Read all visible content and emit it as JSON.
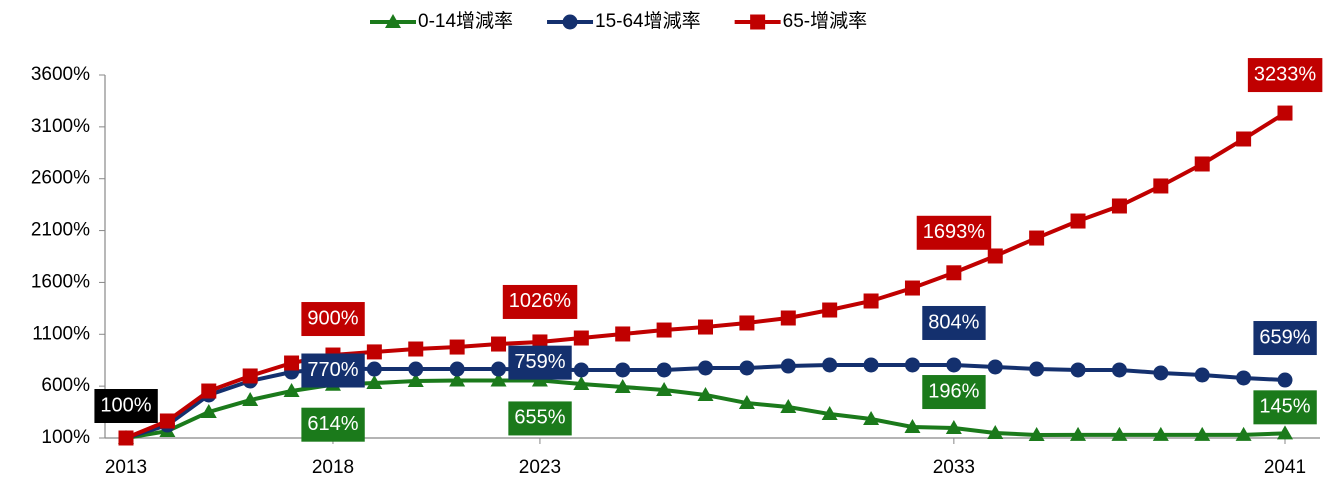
{
  "chart_data": {
    "type": "line",
    "x": [
      2013,
      2014,
      2015,
      2016,
      2017,
      2018,
      2019,
      2020,
      2021,
      2022,
      2023,
      2024,
      2025,
      2026,
      2027,
      2028,
      2029,
      2030,
      2031,
      2032,
      2033,
      2034,
      2035,
      2036,
      2037,
      2038,
      2039,
      2040,
      2041
    ],
    "xlim": [
      2013,
      2041
    ],
    "xticks": [
      2013,
      2018,
      2023,
      2033,
      2041
    ],
    "ylim": [
      100,
      3600
    ],
    "yticks": [
      {
        "value": 100,
        "label": "100%"
      },
      {
        "value": 600,
        "label": "600%"
      },
      {
        "value": 1100,
        "label": "1100%"
      },
      {
        "value": 1600,
        "label": "1600%"
      },
      {
        "value": 2100,
        "label": "2100%"
      },
      {
        "value": 2600,
        "label": "2600%"
      },
      {
        "value": 3100,
        "label": "3100%"
      },
      {
        "value": 3600,
        "label": "3600%"
      }
    ],
    "grid": false,
    "legend": "top",
    "series": [
      {
        "name": "0-14增減率",
        "color": "#1b7a1b",
        "marker": "triangle",
        "values": [
          100,
          167,
          351,
          466,
          553,
          614,
          630,
          650,
          655,
          655,
          655,
          621,
          592,
          563,
          515,
          437,
          399,
          331,
          283,
          206,
          196,
          148,
          129,
          130,
          130,
          130,
          130,
          130,
          145
        ],
        "value_labels": [
          null,
          null,
          null,
          null,
          null,
          "614%",
          null,
          null,
          null,
          null,
          "655%",
          null,
          null,
          null,
          null,
          null,
          null,
          null,
          null,
          null,
          "196%",
          null,
          null,
          null,
          null,
          null,
          null,
          null,
          "145%"
        ]
      },
      {
        "name": "15-64增減率",
        "color": "#14306e",
        "marker": "circle",
        "values": [
          100,
          225,
          515,
          650,
          736,
          770,
          765,
          765,
          765,
          765,
          759,
          756,
          756,
          756,
          775,
          775,
          794,
          804,
          804,
          804,
          804,
          785,
          765,
          756,
          756,
          727,
          707,
          679,
          659
        ],
        "value_labels": [
          null,
          null,
          null,
          null,
          null,
          "770%",
          null,
          null,
          null,
          null,
          "759%",
          null,
          null,
          null,
          null,
          null,
          null,
          null,
          null,
          null,
          "804%",
          null,
          null,
          null,
          null,
          null,
          null,
          null,
          "659%"
        ]
      },
      {
        "name": "65-增減率",
        "color": "#c00000",
        "marker": "square",
        "values": [
          100,
          264,
          553,
          698,
          823,
          900,
          930,
          958,
          977,
          1006,
          1026,
          1064,
          1103,
          1141,
          1170,
          1209,
          1257,
          1334,
          1421,
          1546,
          1693,
          1855,
          2028,
          2192,
          2337,
          2530,
          2742,
          2983,
          3233
        ],
        "value_labels": [
          null,
          null,
          null,
          null,
          null,
          "900%",
          null,
          null,
          null,
          null,
          "1026%",
          null,
          null,
          null,
          null,
          null,
          null,
          null,
          null,
          null,
          "1693%",
          null,
          null,
          null,
          null,
          null,
          null,
          null,
          "3233%"
        ]
      }
    ],
    "annotations": [
      {
        "text": "100%",
        "x": 2013,
        "y": 100,
        "color": "#000000"
      }
    ]
  }
}
